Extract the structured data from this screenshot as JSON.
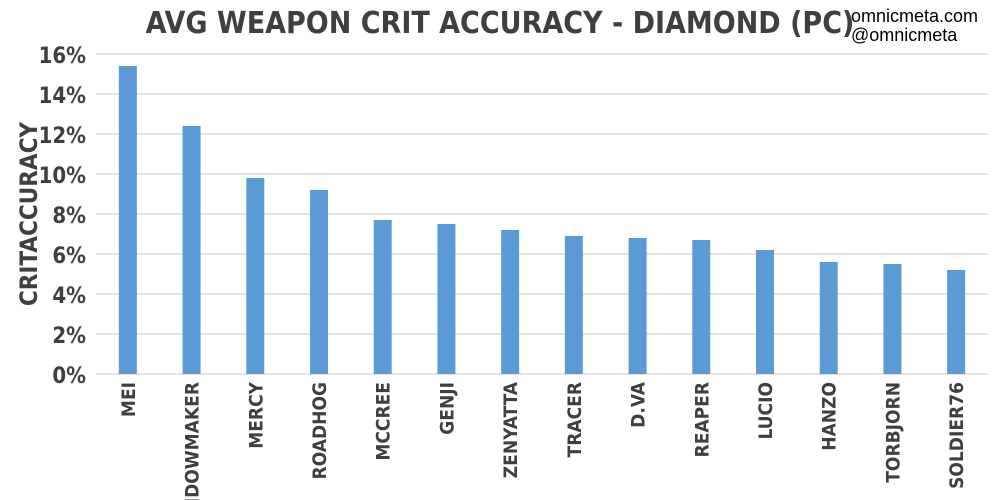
{
  "watermark": {
    "line1": "omnicmeta.com",
    "line2": "@omnicmeta"
  },
  "colors": {
    "bar": "#5b9bd5",
    "grid": "#c8c8c8",
    "text": "#3f3f3f"
  },
  "chart_data": {
    "type": "bar",
    "title": "AVG WEAPON CRIT ACCURACY - DIAMOND (PC)",
    "xlabel": "",
    "ylabel": "CRITACCURACY",
    "categories": [
      "MEI",
      "WIDOWMAKER",
      "MERCY",
      "ROADHOG",
      "MCCREE",
      "GENJI",
      "ZENYATTA",
      "TRACER",
      "D.VA",
      "REAPER",
      "LUCIO",
      "HANZO",
      "TORBJORN",
      "SOLDIER76"
    ],
    "values": [
      15.4,
      12.4,
      9.8,
      9.2,
      7.7,
      7.5,
      7.2,
      6.9,
      6.8,
      6.7,
      6.2,
      5.6,
      5.5,
      5.2
    ],
    "unit": "%",
    "ylim": [
      0,
      16
    ],
    "yticks": [
      "0%",
      "2%",
      "4%",
      "6%",
      "8%",
      "10%",
      "12%",
      "14%",
      "16%"
    ],
    "grid": true,
    "legend": "none"
  }
}
